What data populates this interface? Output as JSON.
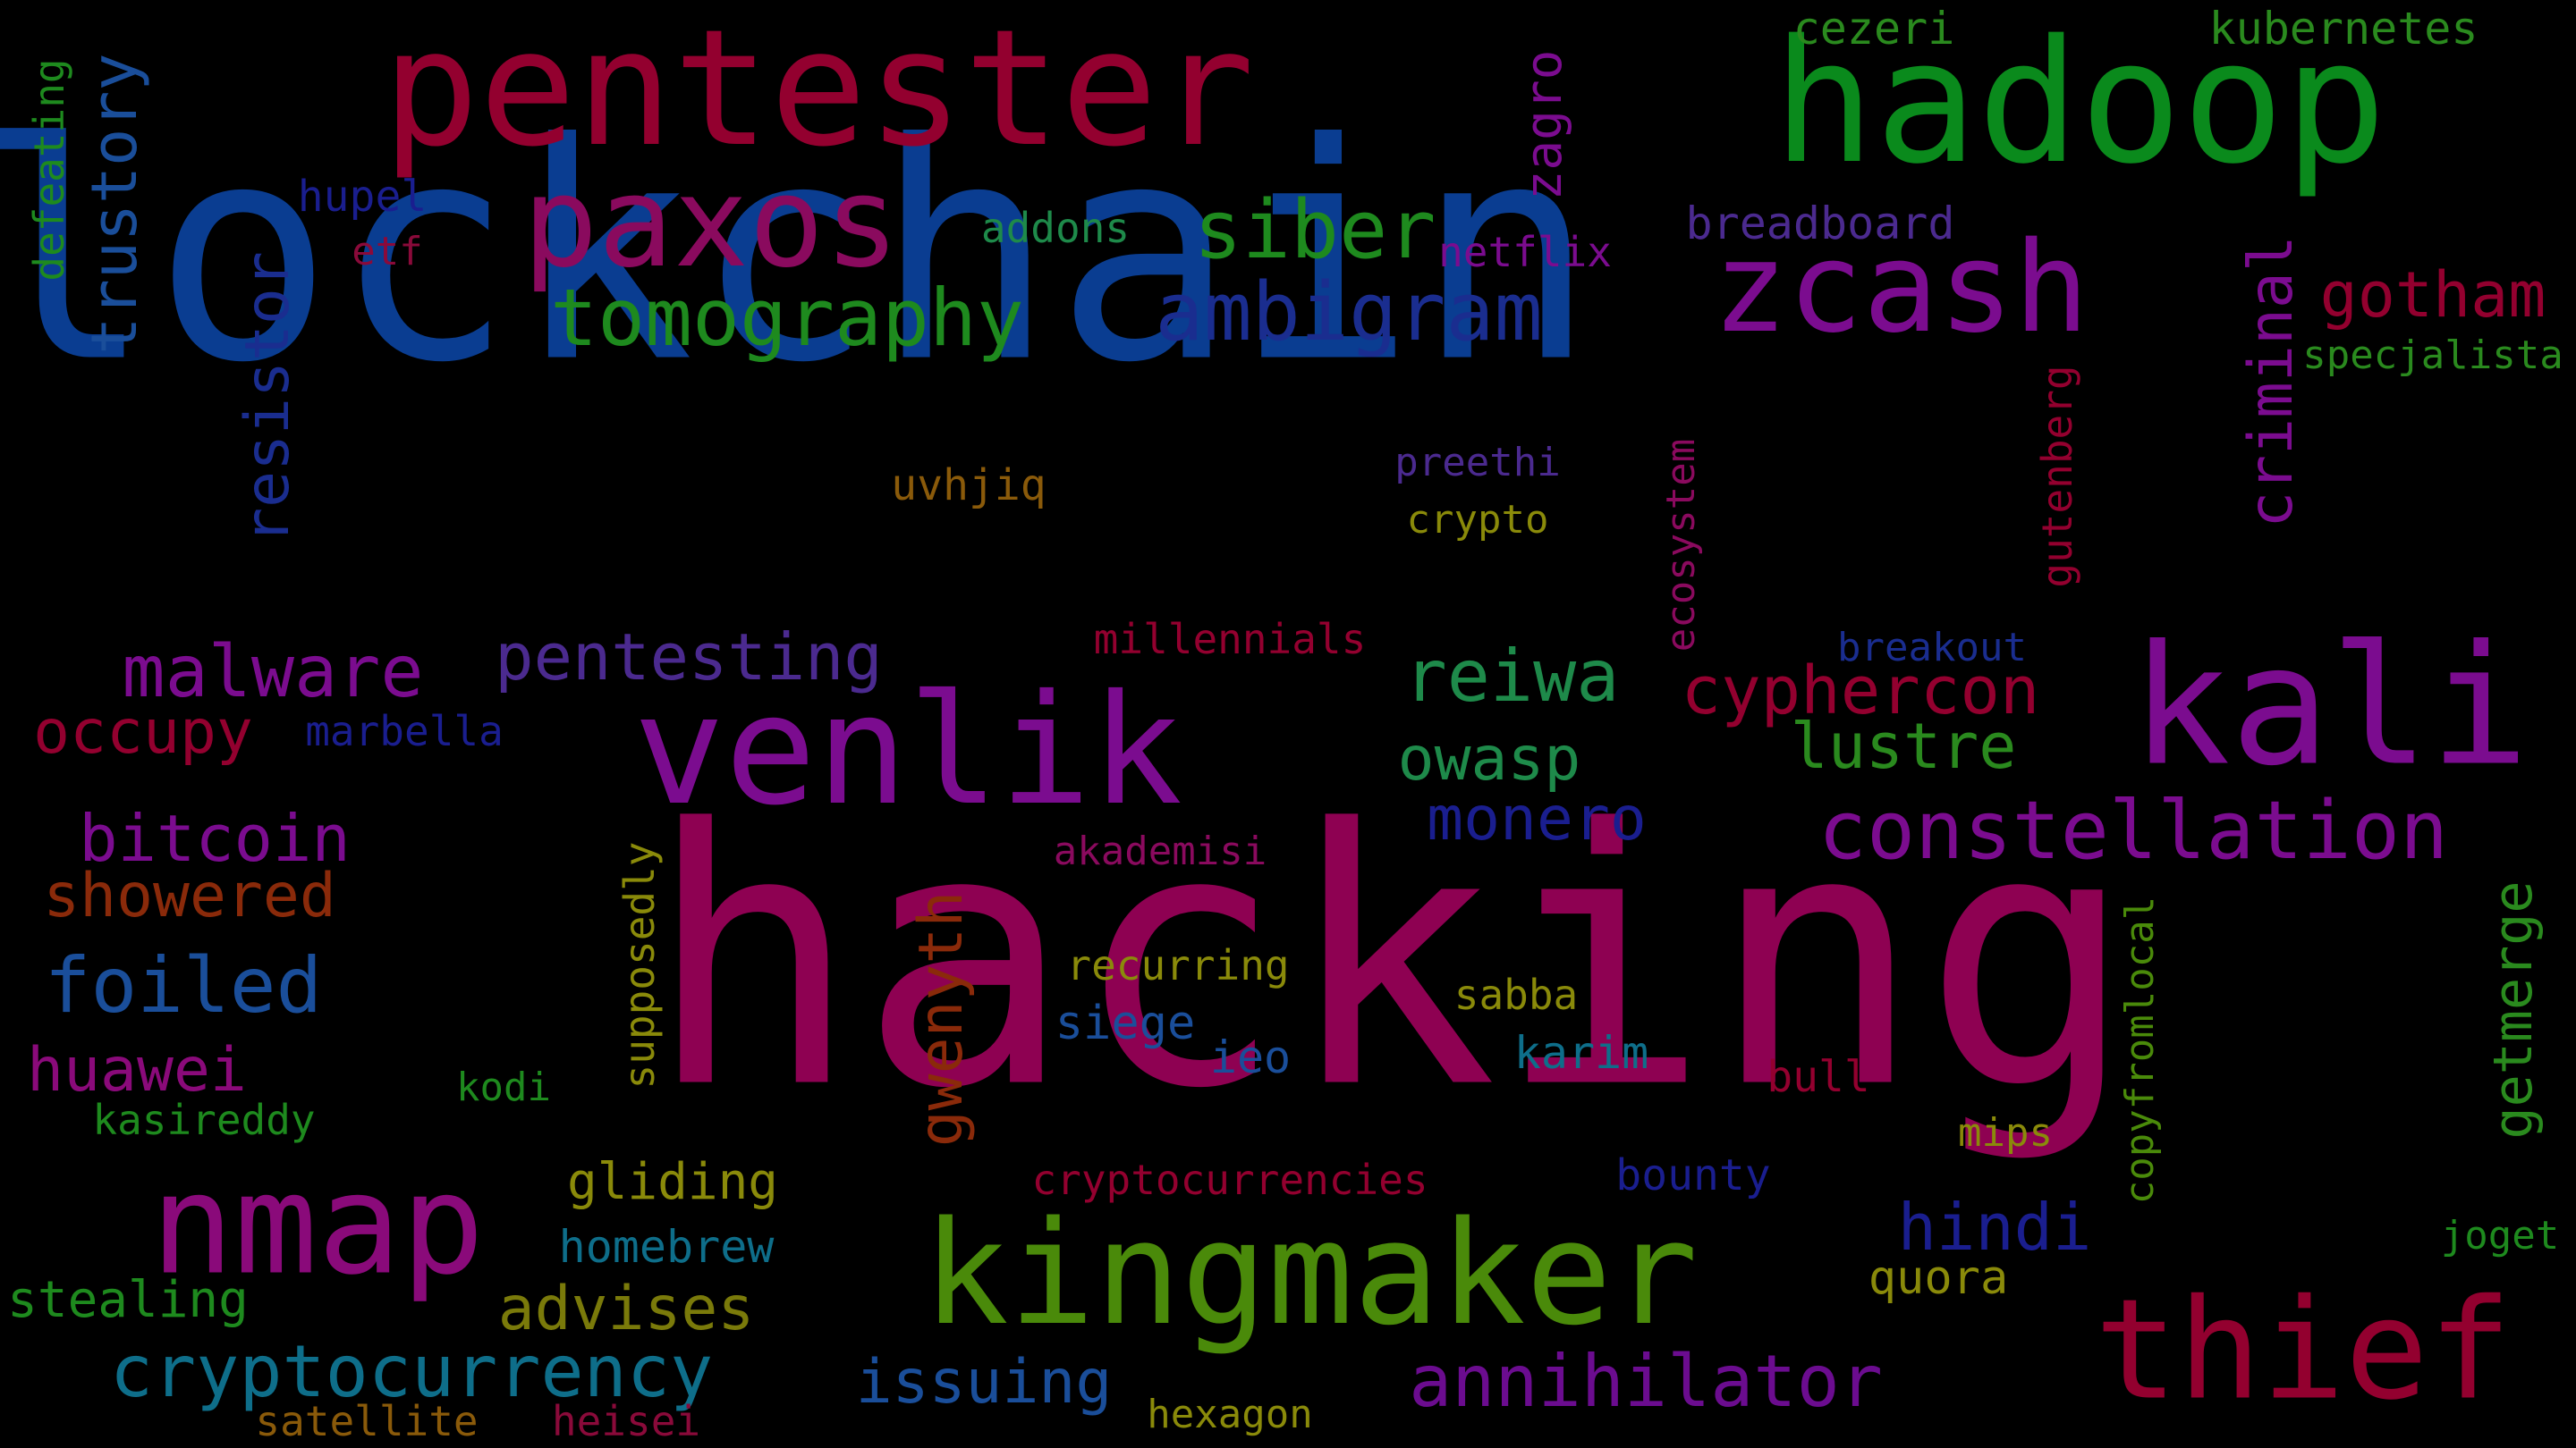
{
  "title": "Word cloud",
  "background": "#000000",
  "words": [
    {
      "text": "blockchain",
      "color": "#0A3D91"
    },
    {
      "text": "hacking",
      "color": "#8E0152"
    },
    {
      "text": "pentester",
      "color": "#93002F"
    },
    {
      "text": "hadoop",
      "color": "#0A8A1C"
    },
    {
      "text": "paxos",
      "color": "#8A0A5E"
    },
    {
      "text": "zcash",
      "color": "#7B0C8F"
    },
    {
      "text": "kali",
      "color": "#7B0C8F"
    },
    {
      "text": "venlik",
      "color": "#7B0C8F"
    },
    {
      "text": "kingmaker",
      "color": "#4A8A0A"
    },
    {
      "text": "nmap",
      "color": "#8A0A7A"
    },
    {
      "text": "thief",
      "color": "#93002F"
    },
    {
      "text": "tomography",
      "color": "#1E8A1E"
    },
    {
      "text": "ambigram",
      "color": "#1A2D8F"
    },
    {
      "text": "siber",
      "color": "#1E8A1E"
    },
    {
      "text": "constellation",
      "color": "#7B0C8F"
    },
    {
      "text": "malware",
      "color": "#7B0C8F"
    },
    {
      "text": "pentesting",
      "color": "#4B2A8F"
    },
    {
      "text": "reiwa",
      "color": "#1E8A4A"
    },
    {
      "text": "cyphercon",
      "color": "#93002F"
    },
    {
      "text": "cryptocurrency",
      "color": "#0E6E8A"
    },
    {
      "text": "annihilator",
      "color": "#6B0C8F"
    },
    {
      "text": "foiled",
      "color": "#1A4E9A"
    },
    {
      "text": "gotham",
      "color": "#93002F"
    },
    {
      "text": "occupy",
      "color": "#93002F"
    },
    {
      "text": "bitcoin",
      "color": "#7B0C8F"
    },
    {
      "text": "showered",
      "color": "#8A2A0A"
    },
    {
      "text": "huawei",
      "color": "#8A0A7A"
    },
    {
      "text": "lustre",
      "color": "#2A8A1E"
    },
    {
      "text": "owasp",
      "color": "#1E8A4A"
    },
    {
      "text": "monero",
      "color": "#1A1E8F"
    },
    {
      "text": "issuing",
      "color": "#1A4E9A"
    },
    {
      "text": "advises",
      "color": "#7A7A0A"
    },
    {
      "text": "hindi",
      "color": "#1A1E8F"
    },
    {
      "text": "trustory",
      "color": "#1A4E9A"
    },
    {
      "text": "resistor",
      "color": "#1A2D8F"
    },
    {
      "text": "criminal",
      "color": "#7B0C8F"
    },
    {
      "text": "zagro",
      "color": "#7B0C8F"
    },
    {
      "text": "gwenyth",
      "color": "#8A2A0A"
    },
    {
      "text": "getmerge",
      "color": "#2A8A1E"
    },
    {
      "text": "cezeri",
      "color": "#2A8A1E"
    },
    {
      "text": "kubernetes",
      "color": "#2A8A1E"
    },
    {
      "text": "defeating",
      "color": "#1E8A1E"
    },
    {
      "text": "hupel",
      "color": "#1A1E8F"
    },
    {
      "text": "etf",
      "color": "#8A0A3A"
    },
    {
      "text": "addons",
      "color": "#1E8A4A"
    },
    {
      "text": "netflix",
      "color": "#7B0C8F"
    },
    {
      "text": "breadboard",
      "color": "#4B2A8F"
    },
    {
      "text": "specjalista",
      "color": "#2A8A1E"
    },
    {
      "text": "gutenberg",
      "color": "#93002F"
    },
    {
      "text": "ecosystem",
      "color": "#8A0A5E"
    },
    {
      "text": "preethi",
      "color": "#4B2A8F"
    },
    {
      "text": "crypto",
      "color": "#8A8A0A"
    },
    {
      "text": "uvhjiq",
      "color": "#8A5A0A"
    },
    {
      "text": "millennials",
      "color": "#93002F"
    },
    {
      "text": "breakout",
      "color": "#1A2D8F"
    },
    {
      "text": "marbella",
      "color": "#1A1E8F"
    },
    {
      "text": "akademisi",
      "color": "#8A0A5E"
    },
    {
      "text": "recurring",
      "color": "#8A8A0A"
    },
    {
      "text": "siege",
      "color": "#1A4E9A"
    },
    {
      "text": "sabba",
      "color": "#8A8A0A"
    },
    {
      "text": "karim",
      "color": "#0E6E8A"
    },
    {
      "text": "ieo",
      "color": "#1A4E9A"
    },
    {
      "text": "supposedly",
      "color": "#8A8A0A"
    },
    {
      "text": "kodi",
      "color": "#1E8A1E"
    },
    {
      "text": "kasireddy",
      "color": "#1E8A1E"
    },
    {
      "text": "bull",
      "color": "#93002F"
    },
    {
      "text": "copyfromlocal",
      "color": "#4A8A0A"
    },
    {
      "text": "mips",
      "color": "#8A8A0A"
    },
    {
      "text": "gliding",
      "color": "#8A8A0A"
    },
    {
      "text": "cryptocurrencies",
      "color": "#93002F"
    },
    {
      "text": "bounty",
      "color": "#1A1E8F"
    },
    {
      "text": "homebrew",
      "color": "#0E6E8A"
    },
    {
      "text": "quora",
      "color": "#8A8A0A"
    },
    {
      "text": "joget",
      "color": "#1E8A1E"
    },
    {
      "text": "stealing",
      "color": "#1E8A1E"
    },
    {
      "text": "satellite",
      "color": "#8A5A0A"
    },
    {
      "text": "heisei",
      "color": "#8A0A3A"
    },
    {
      "text": "hexagon",
      "color": "#8A8A0A"
    }
  ]
}
